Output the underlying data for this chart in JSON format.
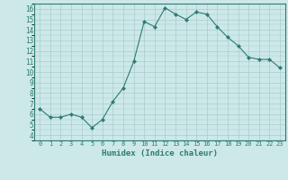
{
  "x": [
    0,
    1,
    2,
    3,
    4,
    5,
    6,
    7,
    8,
    9,
    10,
    11,
    12,
    13,
    14,
    15,
    16,
    17,
    18,
    19,
    20,
    21,
    22,
    23
  ],
  "y": [
    6.5,
    5.7,
    5.7,
    6.0,
    5.7,
    4.7,
    5.5,
    7.2,
    8.5,
    11.0,
    14.8,
    14.3,
    16.1,
    15.5,
    15.0,
    15.7,
    15.5,
    14.3,
    13.3,
    12.5,
    11.4,
    11.2,
    11.2,
    10.4
  ],
  "xlabel": "Humidex (Indice chaleur)",
  "xlim": [
    -0.5,
    23.5
  ],
  "ylim": [
    3.5,
    16.5
  ],
  "yticks": [
    4,
    5,
    6,
    7,
    8,
    9,
    10,
    11,
    12,
    13,
    14,
    15,
    16
  ],
  "xtick_labels": [
    "0",
    "1",
    "2",
    "3",
    "4",
    "5",
    "6",
    "7",
    "8",
    "9",
    "10",
    "11",
    "12",
    "13",
    "14",
    "15",
    "16",
    "17",
    "18",
    "19",
    "20",
    "21",
    "22",
    "23"
  ],
  "line_color": "#2e7d6e",
  "bg_color": "#cce8e8",
  "grid_color": "#aacccc",
  "label_color": "#2e7d6e",
  "spine_color": "#2e7d6e"
}
